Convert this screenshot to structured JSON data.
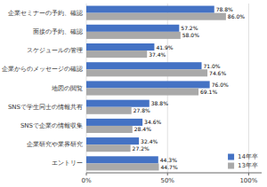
{
  "chart_data": {
    "type": "bar",
    "orientation": "horizontal",
    "categories": [
      "エントリー",
      "企業研究や業界研究",
      "SNSで企業の情報収集",
      "SNSで学生同士の情報共有",
      "地図の閲覧",
      "企業からのメッセージの確認",
      "スケジュールの管理",
      "面接の予約、確認",
      "企業セミナーの予約、確認"
    ],
    "series": [
      {
        "name": "14年卒",
        "color": "#4472C4",
        "values": [
          44.3,
          32.4,
          34.6,
          38.8,
          76.0,
          71.0,
          41.9,
          57.2,
          78.8
        ],
        "value_labels": [
          "44.3%",
          "32.4%",
          "34.6%",
          "38.8%",
          "76.0%",
          "71.0%",
          "41.9%",
          "57.2%",
          "78.8%"
        ]
      },
      {
        "name": "13年卒",
        "color": "#A9A9A9",
        "values": [
          44.7,
          27.2,
          28.4,
          27.8,
          69.1,
          74.6,
          37.4,
          58.0,
          86.0
        ],
        "value_labels": [
          "44.7%",
          "27.2%",
          "28.4%",
          "27.8%",
          "69.1%",
          "74.6%",
          "37.4%",
          "58.0%",
          "86.0%"
        ]
      }
    ],
    "xlim": [
      0,
      108
    ],
    "xticks": [
      {
        "value": 0,
        "label": "0%"
      },
      {
        "value": 50,
        "label": "50%"
      },
      {
        "value": 100,
        "label": "100%"
      }
    ],
    "grid": true,
    "legend": "lower right",
    "data_labels": true
  }
}
